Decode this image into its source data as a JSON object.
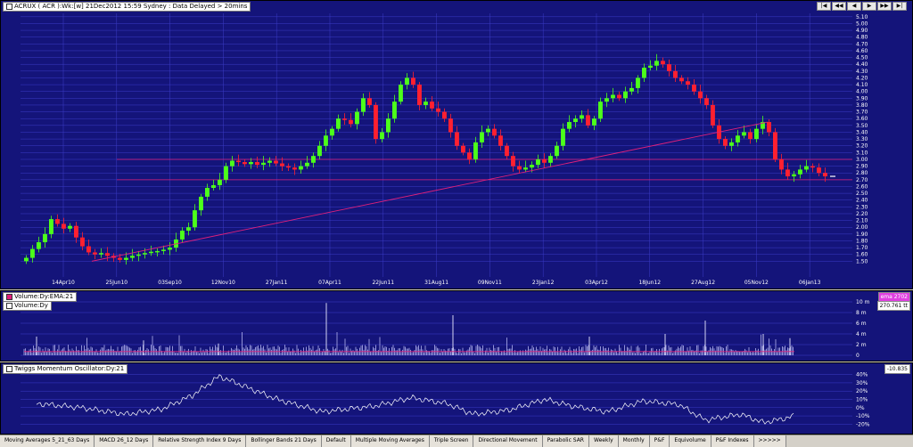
{
  "header": {
    "title": "ACRUX ( ACR ):Wk:[w]   21Dec2012 15:59 Sydney : Data Delayed > 20mins",
    "nav_buttons": [
      "|◀",
      "◀◀",
      "◀",
      "▶",
      "▶▶",
      "▶|"
    ]
  },
  "colors": {
    "up": "#4cff1a",
    "down": "#ff2030",
    "bg": "#14147a",
    "grid": "#3c3cc8",
    "trend": "#e0207a",
    "line": "#ffffff"
  },
  "chart_data": [
    {
      "type": "candlestick",
      "title": "ACRUX ( ACR ):Wk:[w]",
      "ylim": [
        1.4,
        5.15
      ],
      "y_ticks": [
        "5.10",
        "5.00",
        "4.90",
        "4.80",
        "4.70",
        "4.60",
        "4.50",
        "4.40",
        "4.30",
        "4.20",
        "4.10",
        "4.00",
        "3.90",
        "3.80",
        "3.70",
        "3.60",
        "3.50",
        "3.40",
        "3.30",
        "3.20",
        "3.10",
        "3.00",
        "2.90",
        "2.80",
        "2.70",
        "2.60",
        "2.50",
        "2.40",
        "2.30",
        "2.20",
        "2.10",
        "2.00",
        "1.90",
        "1.80",
        "1.70",
        "1.60",
        "1.50"
      ],
      "x_ticks": [
        "14Apr10",
        "25Jun10",
        "03Sep10",
        "12Nov10",
        "27Jan11",
        "07Apr11",
        "22Jun11",
        "31Aug11",
        "09Nov11",
        "23Jan12",
        "03Apr12",
        "18Jun12",
        "27Aug12",
        "05Nov12",
        "06Jan13"
      ],
      "horizontal_lines": [
        3.0,
        2.7
      ],
      "trendline": {
        "from": 1.5,
        "to": 3.55
      },
      "closes": [
        1.55,
        1.68,
        1.78,
        1.9,
        2.12,
        2.05,
        1.98,
        2.02,
        1.85,
        1.72,
        1.63,
        1.6,
        1.62,
        1.58,
        1.55,
        1.52,
        1.55,
        1.58,
        1.6,
        1.62,
        1.64,
        1.65,
        1.67,
        1.7,
        1.82,
        1.95,
        2.0,
        2.25,
        2.45,
        2.58,
        2.62,
        2.7,
        2.9,
        2.98,
        2.96,
        2.93,
        2.96,
        2.92,
        2.95,
        2.98,
        2.94,
        2.9,
        2.88,
        2.85,
        2.9,
        2.95,
        3.05,
        3.2,
        3.35,
        3.45,
        3.6,
        3.58,
        3.52,
        3.7,
        3.9,
        3.8,
        3.3,
        3.4,
        3.6,
        3.85,
        4.1,
        4.2,
        4.1,
        3.8,
        3.85,
        3.75,
        3.7,
        3.6,
        3.4,
        3.2,
        3.1,
        3.0,
        3.25,
        3.4,
        3.45,
        3.35,
        3.2,
        3.05,
        2.9,
        2.85,
        2.88,
        2.92,
        3.0,
        2.95,
        3.05,
        3.2,
        3.45,
        3.55,
        3.6,
        3.65,
        3.5,
        3.6,
        3.85,
        3.9,
        3.95,
        3.9,
        4.0,
        4.05,
        4.2,
        4.35,
        4.38,
        4.45,
        4.4,
        4.3,
        4.2,
        4.15,
        4.1,
        4.0,
        3.9,
        3.8,
        3.5,
        3.3,
        3.2,
        3.25,
        3.35,
        3.4,
        3.3,
        3.45,
        3.55,
        3.4,
        3.0,
        2.85,
        2.75,
        2.78,
        2.85,
        2.9,
        2.88,
        2.8,
        2.75
      ]
    },
    {
      "type": "bar",
      "title": "Volume:Dy:EMA:21",
      "series": [
        {
          "name": "Volume:Dy",
          "values": []
        }
      ],
      "ylim": [
        0,
        11
      ],
      "y_ticks": [
        "10 m",
        "8 m",
        "6 m",
        "4 m",
        "2 m",
        "0"
      ],
      "ema_value": "270.761 tt",
      "ema_box": "ema 2702"
    },
    {
      "type": "line",
      "title": "Twiggs Momentum Oscillator:Dy:21",
      "ylim": [
        -25,
        45
      ],
      "y_ticks": [
        "40%",
        "30%",
        "20%",
        "10%",
        "0%",
        "-10%",
        "-20%"
      ],
      "last_value": "-10.835"
    }
  ],
  "tabs": [
    "Moving Averages 5_21_63 Days",
    "MACD 26_12 Days",
    "Relative Strength Index 9 Days",
    "Bollinger Bands 21 Days",
    "Default",
    "Multiple Moving Averages",
    "Triple Screen",
    "Directional Movement",
    "Parabolic SAR",
    "Weekly",
    "Monthly",
    "P&F",
    "Equivolume",
    "P&F Indexes",
    ">>>>>"
  ]
}
